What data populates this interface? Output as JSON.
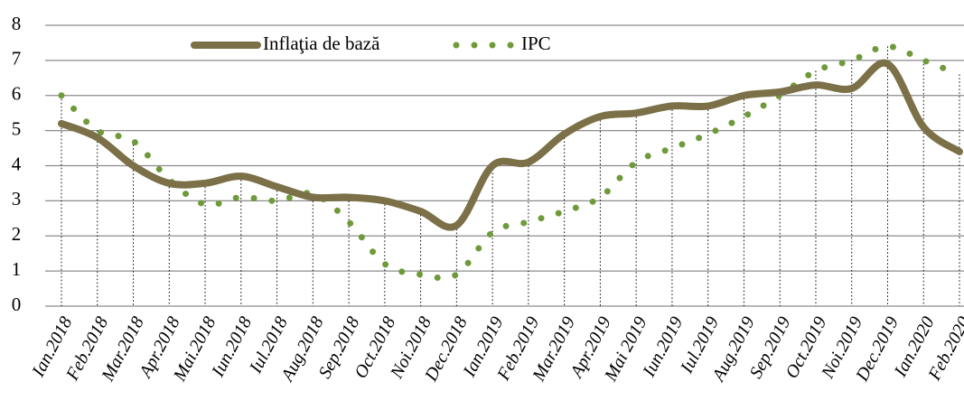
{
  "chart_data": {
    "type": "line",
    "categories": [
      "Ian.2018",
      "Feb.2018",
      "Mar.2018",
      "Apr.2018",
      "Mai.2018",
      "Iun.2018",
      "Iul.2018",
      "Aug.2018",
      "Sep.2018",
      "Oct.2018",
      "Noi.2018",
      "Dec.2018",
      "Ian.2019",
      "Feb.2019",
      "Mar.2019",
      "Apr.2019",
      "Mai 2019",
      "Iun.2019",
      "Iul.2019",
      "Aug.2019",
      "Sep.2019",
      "Oct.2019",
      "Noi.2019",
      "Dec.2019",
      "Ian.2020",
      "Feb.2020"
    ],
    "series": [
      {
        "name": "Inflaţia de bază",
        "color": "#7b7047",
        "style": "solid",
        "values": [
          5.2,
          4.8,
          4.0,
          3.5,
          3.5,
          3.7,
          3.4,
          3.1,
          3.1,
          3.0,
          2.7,
          2.3,
          4.0,
          4.1,
          4.9,
          5.4,
          5.5,
          5.7,
          5.7,
          6.0,
          6.1,
          6.3,
          6.2,
          6.9,
          5.1,
          4.4
        ]
      },
      {
        "name": "IPC",
        "color": "#6e9a3a",
        "style": "dotted",
        "values": [
          6.0,
          5.0,
          4.7,
          3.6,
          2.9,
          3.1,
          3.0,
          3.2,
          2.4,
          1.2,
          0.9,
          0.9,
          2.1,
          2.4,
          2.7,
          3.1,
          4.1,
          4.5,
          4.9,
          5.4,
          6.0,
          6.7,
          7.0,
          7.4,
          7.0,
          6.6
        ]
      }
    ],
    "ylim": [
      0,
      8
    ],
    "yticks": [
      0,
      1,
      2,
      3,
      4,
      5,
      6,
      7,
      8
    ],
    "grid": true,
    "legend": "top"
  }
}
